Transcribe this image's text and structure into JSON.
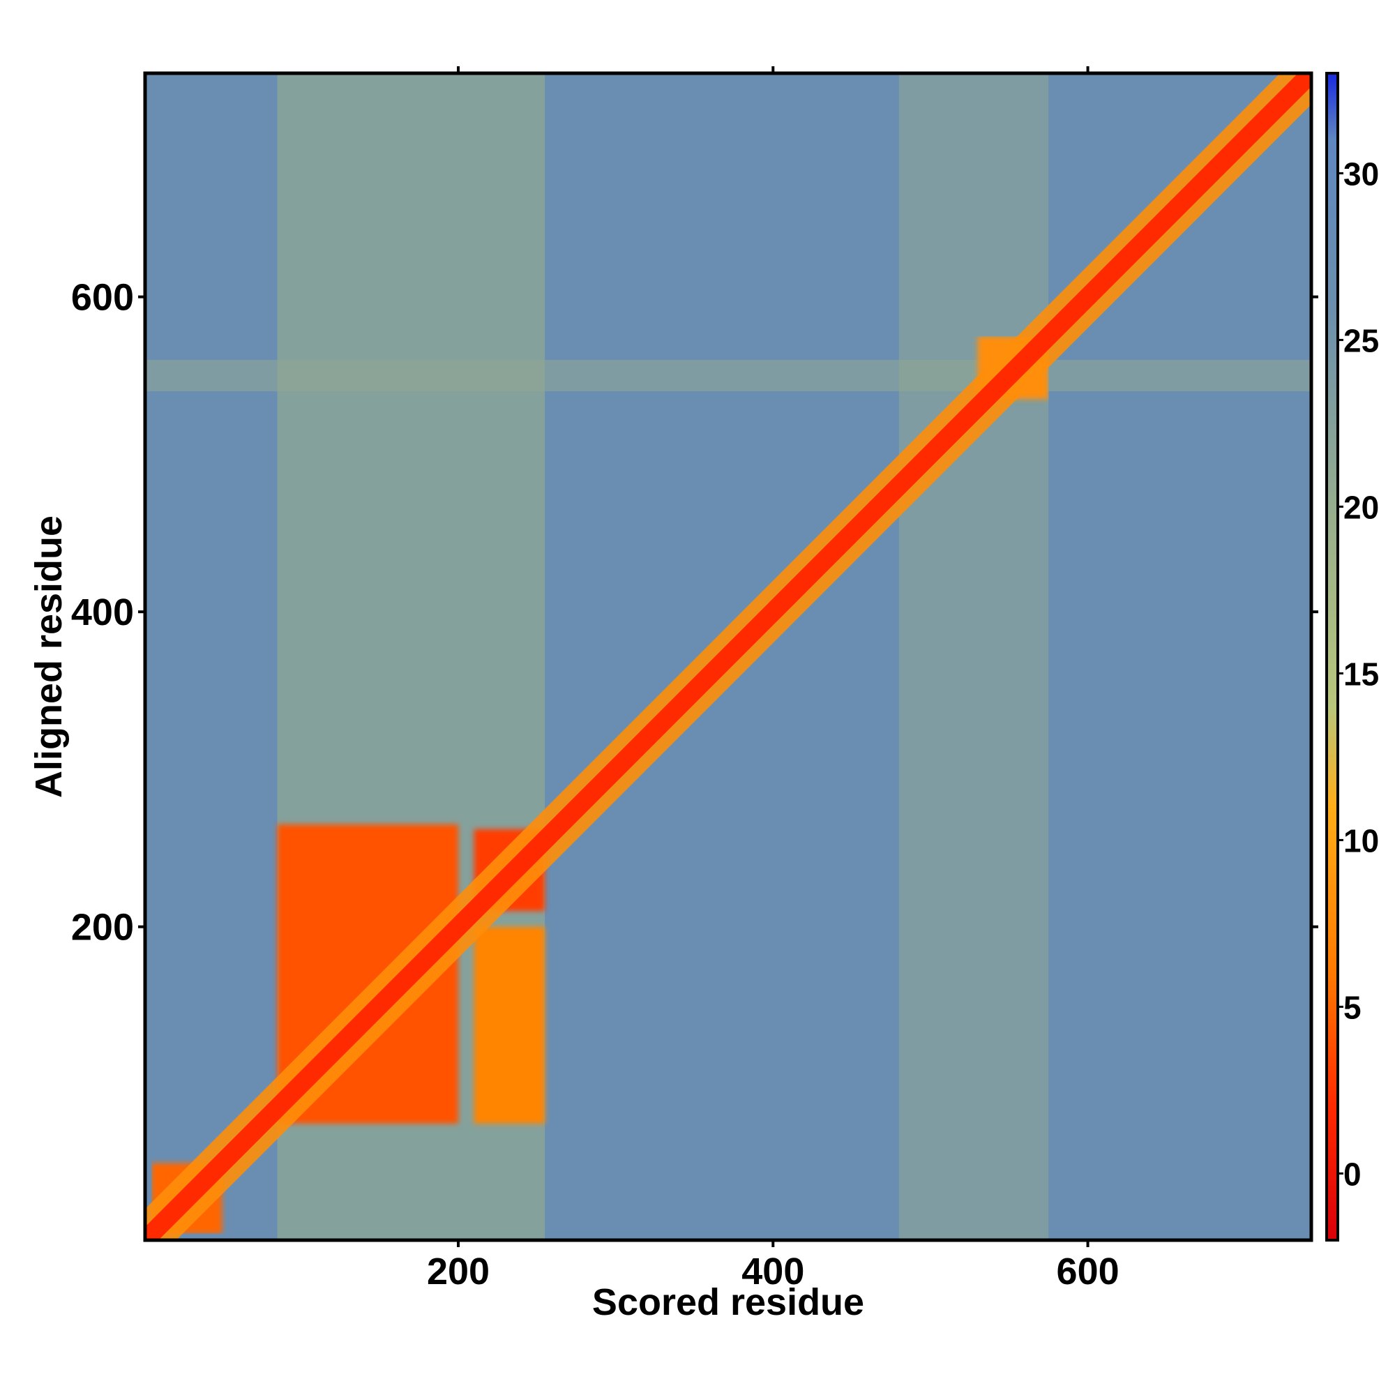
{
  "chart_data": {
    "type": "heatmap",
    "title": "",
    "xlabel": "Scored residue",
    "ylabel": "Aligned residue",
    "xlim": [
      1,
      742
    ],
    "ylim": [
      1,
      742
    ],
    "x_ticks": [
      200,
      400,
      600
    ],
    "y_ticks": [
      200,
      400,
      600
    ],
    "x_tick_labels": [
      "200",
      "400",
      "600"
    ],
    "y_tick_labels": [
      "200",
      "400",
      "600"
    ],
    "colorbar": {
      "range": [
        -2,
        33
      ],
      "ticks": [
        0,
        5,
        10,
        15,
        20,
        25,
        30
      ],
      "tick_labels": [
        "0",
        "5",
        "10",
        "15",
        "20",
        "25",
        "30"
      ],
      "stops": [
        {
          "value": -2,
          "color": "#d9000a"
        },
        {
          "value": 2,
          "color": "#ff2a00"
        },
        {
          "value": 6,
          "color": "#ff7a00"
        },
        {
          "value": 11,
          "color": "#ffad18"
        },
        {
          "value": 14,
          "color": "#b9c77b"
        },
        {
          "value": 20,
          "color": "#96ad8e"
        },
        {
          "value": 26,
          "color": "#6b8fad"
        },
        {
          "value": 31,
          "color": "#5f88c0"
        },
        {
          "value": 33,
          "color": "#1a2adf"
        }
      ]
    },
    "background_value": 27,
    "diagonal": {
      "start": 1,
      "end": 742,
      "value": 0,
      "band_halfwidth": 10
    },
    "blocks": [
      {
        "x": [
          85,
          200
        ],
        "y": [
          75,
          265
        ],
        "value": 4
      },
      {
        "x": [
          210,
          255
        ],
        "y": [
          210,
          262
        ],
        "value": 3
      },
      {
        "x": [
          210,
          255
        ],
        "y": [
          75,
          200
        ],
        "value": 7
      },
      {
        "x": [
          5,
          50
        ],
        "y": [
          5,
          50
        ],
        "value": 5
      },
      {
        "x": [
          530,
          575
        ],
        "y": [
          535,
          575
        ],
        "value": 8
      }
    ],
    "green_bands": [
      {
        "axis": "x",
        "range": [
          85,
          255
        ],
        "value": 19
      },
      {
        "axis": "y",
        "range": [
          540,
          560
        ],
        "value": 21
      },
      {
        "axis": "x",
        "range": [
          480,
          575
        ],
        "value": 21
      }
    ],
    "grid": false,
    "legend": "colorbar-right"
  }
}
